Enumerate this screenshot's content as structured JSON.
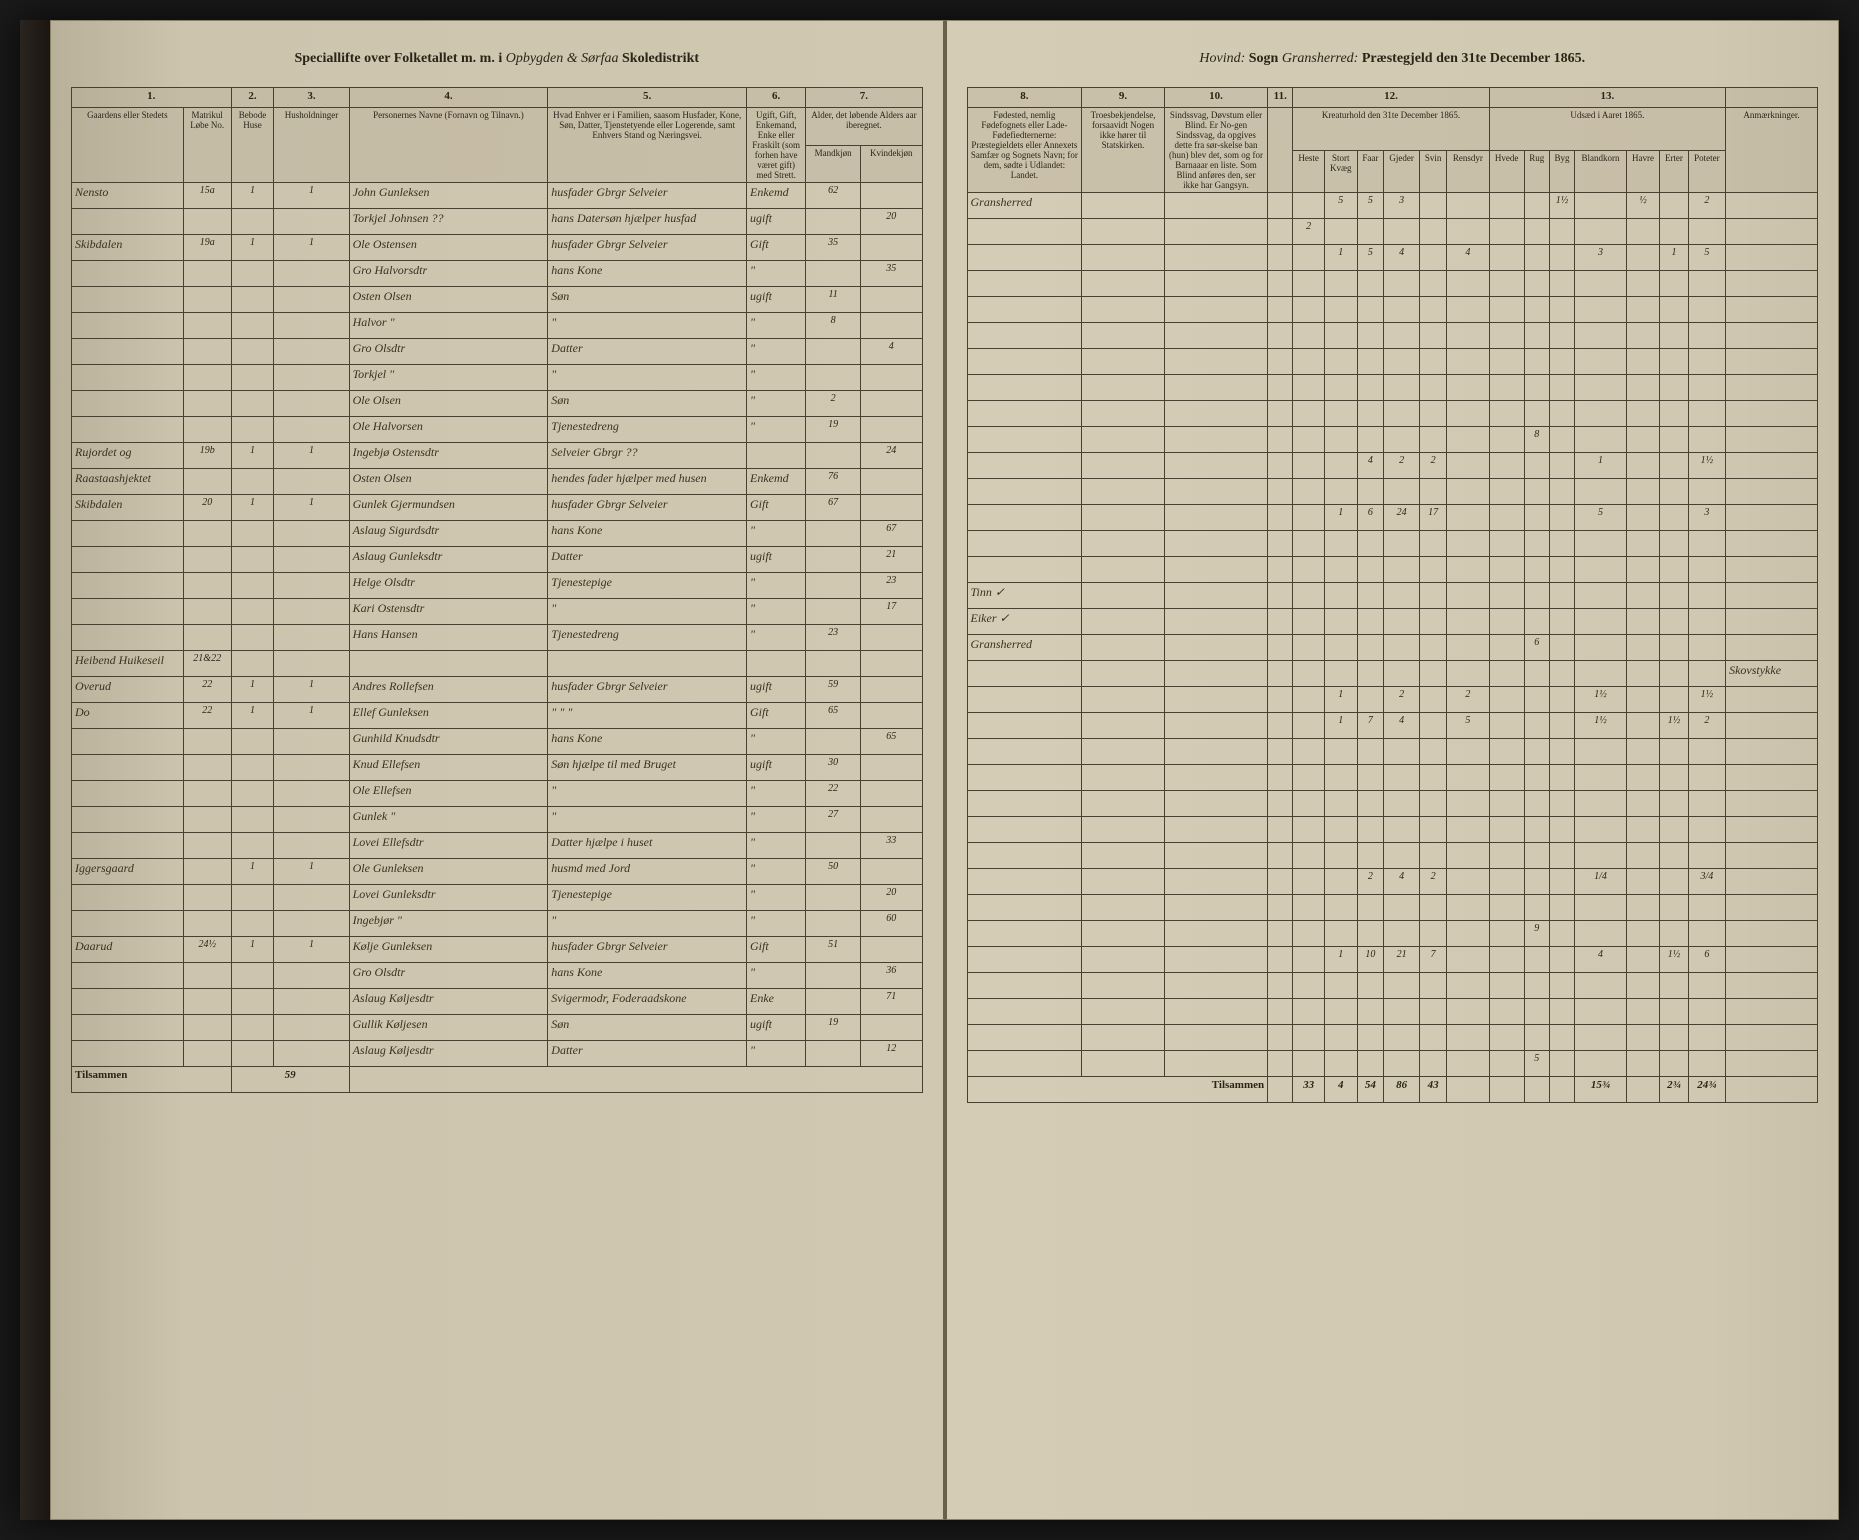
{
  "header": {
    "left_prefix": "Speciallifte over Folketallet m. m. i",
    "district_script": "Opbygden & Sørfaa",
    "skoledistrikt": "Skoledistrikt",
    "sogn_label": "Sogn",
    "sogn_script": "Hovind:",
    "praestegjeld_script": "Gransherred:",
    "praestegjeld_label": "Præstegjeld den 31te December 1865."
  },
  "columns_left": {
    "c1": "1.",
    "c2": "2.",
    "c3": "3.",
    "c4": "4.",
    "c5": "5.",
    "c6": "6.",
    "c7": "7.",
    "h1": "Gaardens eller Stedets",
    "h1_sub": "Navn.",
    "h1b": "Matrikul Løbe No.",
    "h2": "Bebode Huse",
    "h3": "Husholdninger",
    "h4": "Personernes Navne (Fornavn og Tilnavn.)",
    "h5": "Hvad Enhver er i Familien, saasom Husfader, Kone, Søn, Datter, Tjenstetyende eller Logerende, samt Enhvers Stand og Næringsvei.",
    "h6": "Ugift, Gift, Enkemand, Enke eller Fraskilt (som forhen have været gift) med Strett.",
    "h7": "Alder, det løbende Alders aar iberegnet.",
    "h7m": "Mandkjøn",
    "h7k": "Kvindekjøn"
  },
  "columns_right": {
    "c8": "8.",
    "c9": "9.",
    "c10": "10.",
    "c11": "11.",
    "c12": "12.",
    "c13": "13.",
    "h8": "Fødested, nemlig Fødefognets eller Lade-Fødefiedternerne: Præstegieldets eller Annexets Samfær og Sognets Navn; for dem, sødte i Udlandet: Landet.",
    "h9": "Troesbekjendelse, forsaavidt Nogen ikke hører til Statskirken.",
    "h10": "Sindssvag, Døvstum eller Blind. Er No-gen Sindssvag, da opgives dette fra sør-skelse ban (hun) blev det, som og for Barnaaar en liste. Som Blind anføres den, ser ikke har Gangsyn.",
    "h11": "",
    "h12": "Kreaturhold den 31te December 1865.",
    "h13": "Udsæd i Aaret 1865.",
    "anm": "Anmærkninger.",
    "k1": "Heste",
    "k2": "Stort Kvæg",
    "k3": "Faar",
    "k4": "Gjeder",
    "k5": "Svin",
    "k6": "Rensdyr",
    "u1": "Hvede",
    "u2": "Rug",
    "u3": "Byg",
    "u4": "Blandkorn",
    "u5": "Havre",
    "u6": "Erter",
    "u7": "Poteter"
  },
  "rows": [
    {
      "sted": "Nensto",
      "lnr": "15a",
      "bh": "1",
      "hh": "1",
      "navn": "John Gunleksen",
      "stand": "husfader Gbrgr Selveier",
      "gs": "Enkemd",
      "m": "62",
      "k": "",
      "fst": "Gransherred",
      "liv": [
        "",
        "5",
        "5",
        "3",
        "",
        "",
        "",
        "",
        "1½",
        "",
        "½",
        "",
        "2"
      ],
      "anm": ""
    },
    {
      "sted": "",
      "lnr": "",
      "bh": "",
      "hh": "",
      "navn": "Torkjel Johnsen ??",
      "stand": "hans Datersøn hjælper husfad",
      "gs": "ugift",
      "m": "",
      "k": "20",
      "fst": "",
      "liv": [
        "2",
        "",
        "",
        "",
        "",
        "",
        "",
        "",
        "",
        "",
        "",
        "",
        ""
      ],
      "anm": ""
    },
    {
      "sted": "Skibdalen",
      "lnr": "19a",
      "bh": "1",
      "hh": "1",
      "navn": "Ole Ostensen",
      "stand": "husfader Gbrgr Selveier",
      "gs": "Gift",
      "m": "35",
      "k": "",
      "fst": "",
      "liv": [
        "",
        "1",
        "5",
        "4",
        "",
        "4",
        "",
        "",
        "",
        "3",
        "",
        "1",
        "5"
      ],
      "anm": ""
    },
    {
      "sted": "",
      "lnr": "",
      "bh": "",
      "hh": "",
      "navn": "Gro Halvorsdtr",
      "stand": "hans Kone",
      "gs": "\"",
      "m": "",
      "k": "35",
      "fst": "",
      "liv": [],
      "anm": ""
    },
    {
      "sted": "",
      "lnr": "",
      "bh": "",
      "hh": "",
      "navn": "Osten Olsen",
      "stand": "Søn",
      "gs": "ugift",
      "m": "11",
      "k": "",
      "fst": "",
      "liv": [],
      "anm": ""
    },
    {
      "sted": "",
      "lnr": "",
      "bh": "",
      "hh": "",
      "navn": "Halvor \"",
      "stand": "\"",
      "gs": "\"",
      "m": "8",
      "k": "",
      "fst": "",
      "liv": [],
      "anm": ""
    },
    {
      "sted": "",
      "lnr": "",
      "bh": "",
      "hh": "",
      "navn": "Gro Olsdtr",
      "stand": "Datter",
      "gs": "\"",
      "m": "",
      "k": "4",
      "fst": "",
      "liv": [],
      "anm": ""
    },
    {
      "sted": "",
      "lnr": "",
      "bh": "",
      "hh": "",
      "navn": "Torkjel \"",
      "stand": "\"",
      "gs": "\"",
      "m": "",
      "k": "",
      "fst": "",
      "liv": [],
      "anm": ""
    },
    {
      "sted": "",
      "lnr": "",
      "bh": "",
      "hh": "",
      "navn": "Ole Olsen",
      "stand": "Søn",
      "gs": "\"",
      "m": "2",
      "k": "",
      "fst": "",
      "liv": [],
      "anm": ""
    },
    {
      "sted": "",
      "lnr": "",
      "bh": "",
      "hh": "",
      "navn": "Ole Halvorsen",
      "stand": "Tjenestedreng",
      "gs": "\"",
      "m": "19",
      "k": "",
      "fst": "",
      "liv": [
        "",
        "",
        "",
        "",
        "",
        "",
        "",
        "8",
        "",
        "",
        "",
        "",
        ""
      ],
      "anm": ""
    },
    {
      "sted": "Rujordet og",
      "lnr": "19b",
      "bh": "1",
      "hh": "1",
      "navn": "Ingebjø Ostensdtr",
      "stand": "Selveier Gbrgr ??",
      "gs": "",
      "m": "",
      "k": "24",
      "fst": "",
      "liv": [
        "",
        "",
        "4",
        "2",
        "2",
        "",
        "",
        "",
        "",
        "1",
        "",
        "",
        "1½"
      ],
      "anm": ""
    },
    {
      "sted": "Raastaashjektet",
      "lnr": "",
      "bh": "",
      "hh": "",
      "navn": "Osten Olsen",
      "stand": "hendes fader hjælper med husen",
      "gs": "Enkemd",
      "m": "76",
      "k": "",
      "fst": "",
      "liv": [],
      "anm": ""
    },
    {
      "sted": "Skibdalen",
      "lnr": "20",
      "bh": "1",
      "hh": "1",
      "navn": "Gunlek Gjermundsen",
      "stand": "husfader Gbrgr Selveier",
      "gs": "Gift",
      "m": "67",
      "k": "",
      "fst": "",
      "liv": [
        "",
        "1",
        "6",
        "24",
        "17",
        "",
        "",
        "",
        "",
        "5",
        "",
        "",
        "3"
      ],
      "anm": ""
    },
    {
      "sted": "",
      "lnr": "",
      "bh": "",
      "hh": "",
      "navn": "Aslaug Sigurdsdtr",
      "stand": "hans Kone",
      "gs": "\"",
      "m": "",
      "k": "67",
      "fst": "",
      "liv": [],
      "anm": ""
    },
    {
      "sted": "",
      "lnr": "",
      "bh": "",
      "hh": "",
      "navn": "Aslaug Gunleksdtr",
      "stand": "Datter",
      "gs": "ugift",
      "m": "",
      "k": "21",
      "fst": "",
      "liv": [],
      "anm": ""
    },
    {
      "sted": "",
      "lnr": "",
      "bh": "",
      "hh": "",
      "navn": "Helge Olsdtr",
      "stand": "Tjenestepige",
      "gs": "\"",
      "m": "",
      "k": "23",
      "fst": "Tinn ✓",
      "liv": [],
      "anm": ""
    },
    {
      "sted": "",
      "lnr": "",
      "bh": "",
      "hh": "",
      "navn": "Kari Ostensdtr",
      "stand": "\"",
      "gs": "\"",
      "m": "",
      "k": "17",
      "fst": "Eiker ✓",
      "liv": [],
      "anm": ""
    },
    {
      "sted": "",
      "lnr": "",
      "bh": "",
      "hh": "",
      "navn": "Hans Hansen",
      "stand": "Tjenestedreng",
      "gs": "\"",
      "m": "23",
      "k": "",
      "fst": "Gransherred",
      "liv": [
        "",
        "",
        "",
        "",
        "",
        "",
        "",
        "6",
        "",
        "",
        "",
        "",
        ""
      ],
      "anm": ""
    },
    {
      "sted": "Heibend Huikeseil",
      "lnr": "21&22",
      "bh": "",
      "hh": "",
      "navn": "",
      "stand": "",
      "gs": "",
      "m": "",
      "k": "",
      "fst": "",
      "liv": [],
      "anm": "Skovstykke"
    },
    {
      "sted": "Overud",
      "lnr": "22",
      "bh": "1",
      "hh": "1",
      "navn": "Andres Rollefsen",
      "stand": "husfader Gbrgr Selveier",
      "gs": "ugift",
      "m": "59",
      "k": "",
      "fst": "",
      "liv": [
        "",
        "1",
        "",
        "2",
        "",
        "2",
        "",
        "",
        "",
        "1½",
        "",
        "",
        "1½"
      ],
      "anm": ""
    },
    {
      "sted": "Do",
      "lnr": "22",
      "bh": "1",
      "hh": "1",
      "navn": "Ellef Gunleksen",
      "stand": "\"  \"  \"",
      "gs": "Gift",
      "m": "65",
      "k": "",
      "fst": "",
      "liv": [
        "",
        "1",
        "7",
        "4",
        "",
        "5",
        "",
        "",
        "",
        "1½",
        "",
        "1½",
        "2"
      ],
      "anm": ""
    },
    {
      "sted": "",
      "lnr": "",
      "bh": "",
      "hh": "",
      "navn": "Gunhild Knudsdtr",
      "stand": "hans Kone",
      "gs": "\"",
      "m": "",
      "k": "65",
      "fst": "",
      "liv": [],
      "anm": ""
    },
    {
      "sted": "",
      "lnr": "",
      "bh": "",
      "hh": "",
      "navn": "Knud Ellefsen",
      "stand": "Søn hjælpe til med Bruget",
      "gs": "ugift",
      "m": "30",
      "k": "",
      "fst": "",
      "liv": [],
      "anm": ""
    },
    {
      "sted": "",
      "lnr": "",
      "bh": "",
      "hh": "",
      "navn": "Ole Ellefsen",
      "stand": "\"",
      "gs": "\"",
      "m": "22",
      "k": "",
      "fst": "",
      "liv": [],
      "anm": ""
    },
    {
      "sted": "",
      "lnr": "",
      "bh": "",
      "hh": "",
      "navn": "Gunlek \"",
      "stand": "\"",
      "gs": "\"",
      "m": "27",
      "k": "",
      "fst": "",
      "liv": [],
      "anm": ""
    },
    {
      "sted": "",
      "lnr": "",
      "bh": "",
      "hh": "",
      "navn": "Lovei Ellefsdtr",
      "stand": "Datter hjælpe i huset",
      "gs": "\"",
      "m": "",
      "k": "33",
      "fst": "",
      "liv": [],
      "anm": ""
    },
    {
      "sted": "Iggersgaard",
      "lnr": "",
      "bh": "1",
      "hh": "1",
      "navn": "Ole Gunleksen",
      "stand": "husmd med Jord",
      "gs": "\"",
      "m": "50",
      "k": "",
      "fst": "",
      "liv": [
        "",
        "",
        "2",
        "4",
        "2",
        "",
        "",
        "",
        "",
        "1/4",
        "",
        "",
        "3/4"
      ],
      "anm": ""
    },
    {
      "sted": "",
      "lnr": "",
      "bh": "",
      "hh": "",
      "navn": "Lovei Gunleksdtr",
      "stand": "Tjenestepige",
      "gs": "\"",
      "m": "",
      "k": "20",
      "fst": "",
      "liv": [],
      "anm": ""
    },
    {
      "sted": "",
      "lnr": "",
      "bh": "",
      "hh": "",
      "navn": "Ingebjør \"",
      "stand": "\"",
      "gs": "\"",
      "m": "",
      "k": "60",
      "fst": "",
      "liv": [
        "",
        "",
        "",
        "",
        "",
        "",
        "",
        "9",
        "",
        "",
        "",
        "",
        ""
      ],
      "anm": ""
    },
    {
      "sted": "Daarud",
      "lnr": "24½",
      "bh": "1",
      "hh": "1",
      "navn": "Kølje Gunleksen",
      "stand": "husfader Gbrgr Selveier",
      "gs": "Gift",
      "m": "51",
      "k": "",
      "fst": "",
      "liv": [
        "",
        "1",
        "10",
        "21",
        "7",
        "",
        "",
        "",
        "",
        "4",
        "",
        "1½",
        "6"
      ],
      "anm": ""
    },
    {
      "sted": "",
      "lnr": "",
      "bh": "",
      "hh": "",
      "navn": "Gro Olsdtr",
      "stand": "hans Kone",
      "gs": "\"",
      "m": "",
      "k": "36",
      "fst": "",
      "liv": [],
      "anm": ""
    },
    {
      "sted": "",
      "lnr": "",
      "bh": "",
      "hh": "",
      "navn": "Aslaug Køljesdtr",
      "stand": "Svigermodr, Foderaadskone",
      "gs": "Enke",
      "m": "",
      "k": "71",
      "fst": "",
      "liv": [],
      "anm": ""
    },
    {
      "sted": "",
      "lnr": "",
      "bh": "",
      "hh": "",
      "navn": "Gullik Køljesen",
      "stand": "Søn",
      "gs": "ugift",
      "m": "19",
      "k": "",
      "fst": "",
      "liv": [],
      "anm": ""
    },
    {
      "sted": "",
      "lnr": "",
      "bh": "",
      "hh": "",
      "navn": "Aslaug Køljesdtr",
      "stand": "Datter",
      "gs": "\"",
      "m": "",
      "k": "12",
      "fst": "",
      "liv": [
        "",
        "",
        "",
        "",
        "",
        "",
        "",
        "5",
        "",
        "",
        "",
        "",
        ""
      ],
      "anm": ""
    }
  ],
  "footer": {
    "tilsammen_left": "Tilsammen",
    "count_left": "59",
    "tilsammen_right": "Tilsammen",
    "totals": [
      "33",
      "4",
      "54",
      "86",
      "43",
      "",
      "",
      "",
      "",
      "15¾",
      "",
      "2¾",
      "24¾"
    ]
  }
}
